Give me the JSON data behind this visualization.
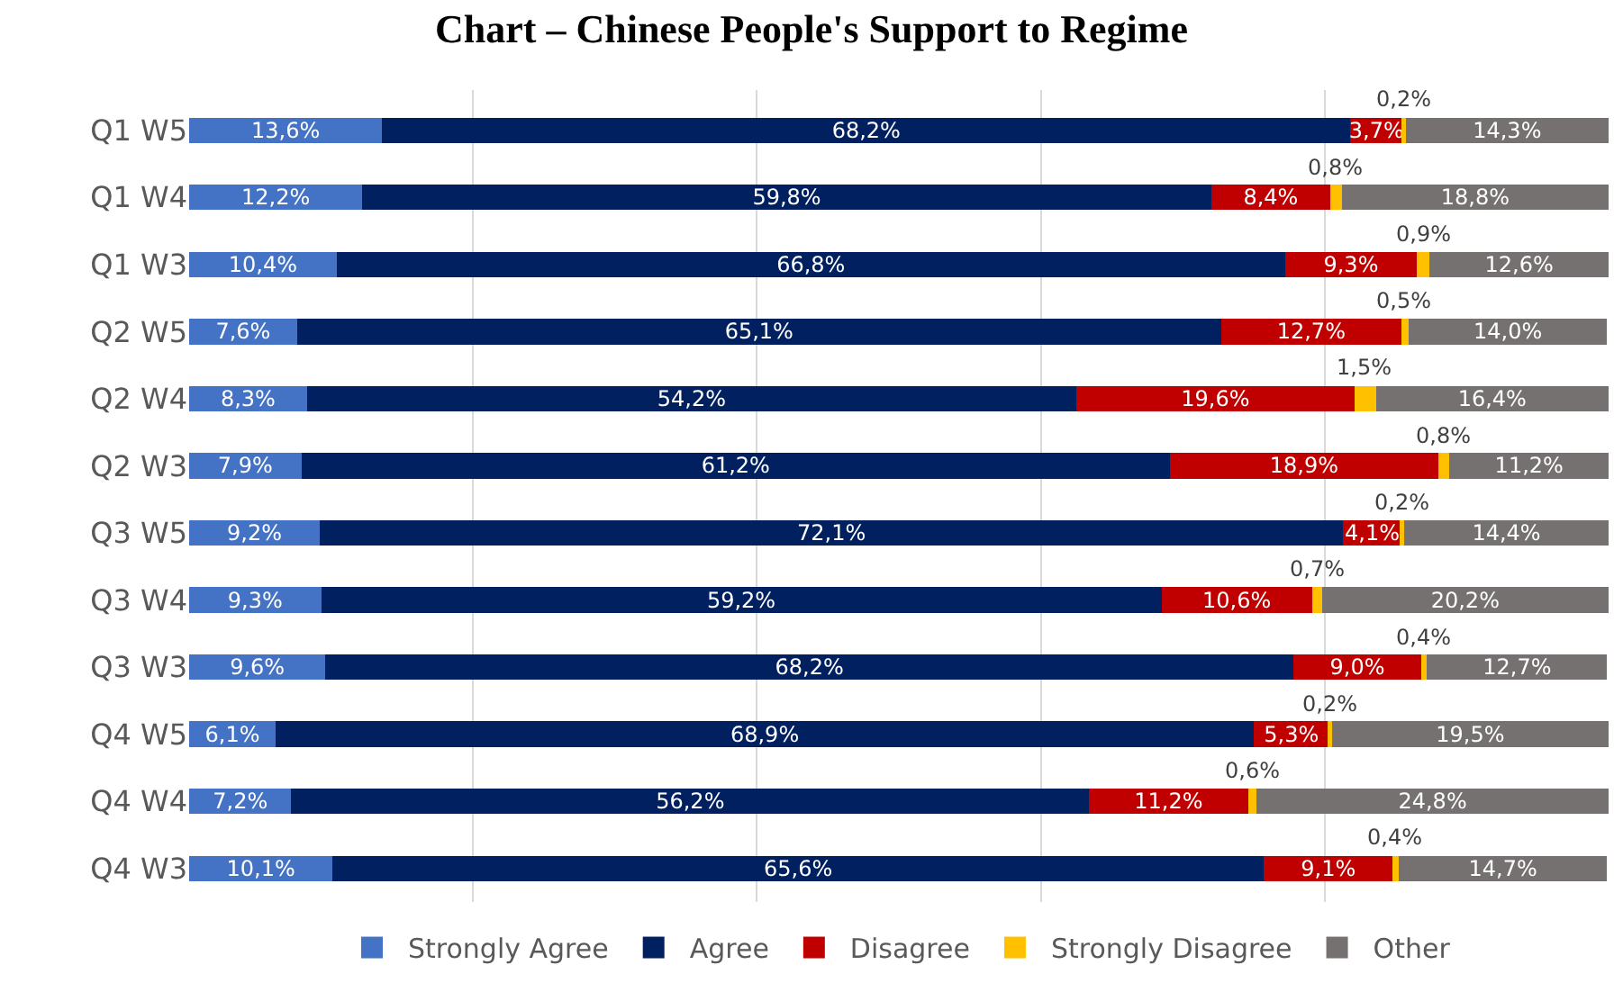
{
  "chart_data": {
    "type": "bar",
    "orientation": "horizontal",
    "stacked": true,
    "title": "Chart – Chinese People's Support to Regime",
    "categories": [
      "Q1 W5",
      "Q1 W4",
      "Q1 W3",
      "Q2 W5",
      "Q2 W4",
      "Q2 W3",
      "Q3 W5",
      "Q3 W4",
      "Q3 W3",
      "Q4 W5",
      "Q4 W4",
      "Q4 W3"
    ],
    "series": [
      {
        "name": "Strongly Agree",
        "color": "#4472c4",
        "values": [
          13.6,
          12.2,
          10.4,
          7.6,
          8.3,
          7.9,
          9.2,
          9.3,
          9.6,
          6.1,
          7.2,
          10.1
        ],
        "value_labels": [
          "13,6%",
          "12,2%",
          "10,4%",
          "7,6%",
          "8,3%",
          "7,9%",
          "9,2%",
          "9,3%",
          "9,6%",
          "6,1%",
          "7,2%",
          "10,1%"
        ]
      },
      {
        "name": "Agree",
        "color": "#002060",
        "values": [
          68.2,
          59.8,
          66.8,
          65.1,
          54.2,
          61.2,
          72.1,
          59.2,
          68.2,
          68.9,
          56.2,
          65.6
        ],
        "value_labels": [
          "68,2%",
          "59,8%",
          "66,8%",
          "65,1%",
          "54,2%",
          "61,2%",
          "72,1%",
          "59,2%",
          "68,2%",
          "68,9%",
          "56,2%",
          "65,6%"
        ]
      },
      {
        "name": "Disagree",
        "color": "#c00000",
        "values": [
          3.7,
          8.4,
          9.3,
          12.7,
          19.6,
          18.9,
          4.1,
          10.6,
          9.0,
          5.3,
          11.2,
          9.1
        ],
        "value_labels": [
          "3,7%",
          "8,4%",
          "9,3%",
          "12,7%",
          "19,6%",
          "18,9%",
          "4,1%",
          "10,6%",
          "9,0%",
          "5,3%",
          "11,2%",
          "9,1%"
        ]
      },
      {
        "name": "Strongly Disagree",
        "color": "#ffc000",
        "values": [
          0.2,
          0.8,
          0.9,
          0.5,
          1.5,
          0.8,
          0.2,
          0.7,
          0.4,
          0.2,
          0.6,
          0.4
        ],
        "value_labels": [
          "0,2%",
          "0,8%",
          "0,9%",
          "0,5%",
          "1,5%",
          "0,8%",
          "0,2%",
          "0,7%",
          "0,4%",
          "0,2%",
          "0,6%",
          "0,4%"
        ]
      },
      {
        "name": "Other",
        "color": "#767171",
        "values": [
          14.3,
          18.8,
          12.6,
          14.0,
          16.4,
          11.2,
          14.4,
          20.2,
          12.7,
          19.5,
          24.8,
          14.7
        ],
        "value_labels": [
          "14,3%",
          "18,8%",
          "12,6%",
          "14,0%",
          "16,4%",
          "11,2%",
          "14,4%",
          "20,2%",
          "12,7%",
          "19,5%",
          "24,8%",
          "14,7%"
        ]
      }
    ],
    "xlim": [
      0,
      100
    ],
    "xticks": [
      {
        "value": 20,
        "label": null
      },
      {
        "value": 40,
        "label": null
      },
      {
        "value": 60,
        "label": null
      },
      {
        "value": 80,
        "label": null
      }
    ],
    "tick_labels": "y",
    "grid": "x",
    "legend": "bottom"
  }
}
